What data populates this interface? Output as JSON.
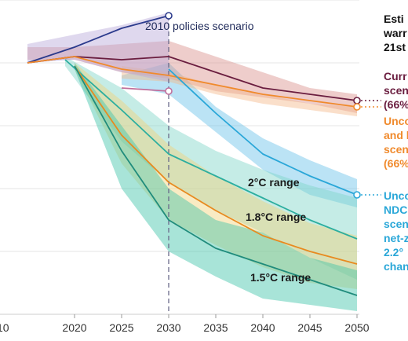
{
  "chart_data": {
    "type": "line",
    "x_ticks": [
      2020,
      2025,
      2030,
      2035,
      2040,
      2045,
      2050
    ],
    "xlim": [
      2015,
      2050
    ],
    "ylim": [
      0,
      100
    ],
    "y_axis_labels": "not visible (cropped)",
    "vertical_reference_line": 2030,
    "bands": [
      {
        "name": "blue band",
        "color": "#69c2e9",
        "upper": [
          [
            2025,
            76
          ],
          [
            2030,
            80
          ],
          [
            2035,
            66
          ],
          [
            2040,
            56
          ],
          [
            2045,
            49
          ],
          [
            2050,
            43
          ]
        ],
        "lower": [
          [
            2025,
            73
          ],
          [
            2030,
            70
          ],
          [
            2035,
            58
          ],
          [
            2040,
            46
          ],
          [
            2045,
            38
          ],
          [
            2050,
            34
          ]
        ]
      },
      {
        "name": "2°C range",
        "color": "#7fd4c8",
        "upper": [
          [
            2019,
            82
          ],
          [
            2025,
            72
          ],
          [
            2030,
            60
          ],
          [
            2035,
            52
          ],
          [
            2040,
            46
          ],
          [
            2045,
            41
          ],
          [
            2050,
            37
          ]
        ],
        "lower": [
          [
            2019,
            79
          ],
          [
            2025,
            55
          ],
          [
            2030,
            42
          ],
          [
            2035,
            33
          ],
          [
            2040,
            26
          ],
          [
            2045,
            18
          ],
          [
            2050,
            11
          ]
        ]
      },
      {
        "name": "1.8°C range",
        "color": "#f2d37a",
        "upper": [
          [
            2020,
            80
          ],
          [
            2025,
            68
          ],
          [
            2030,
            54
          ],
          [
            2035,
            44
          ],
          [
            2040,
            36
          ],
          [
            2045,
            29
          ],
          [
            2050,
            25
          ]
        ],
        "lower": [
          [
            2020,
            78
          ],
          [
            2025,
            48
          ],
          [
            2030,
            30
          ],
          [
            2035,
            22
          ],
          [
            2040,
            15
          ],
          [
            2045,
            10
          ],
          [
            2050,
            8
          ]
        ]
      },
      {
        "name": "1.5°C range",
        "color": "#3fc3a8",
        "upper": [
          [
            2020,
            80
          ],
          [
            2025,
            60
          ],
          [
            2030,
            40
          ],
          [
            2035,
            30
          ],
          [
            2040,
            26
          ],
          [
            2045,
            18
          ],
          [
            2050,
            14
          ]
        ],
        "lower": [
          [
            2020,
            78
          ],
          [
            2025,
            40
          ],
          [
            2030,
            20
          ],
          [
            2035,
            12
          ],
          [
            2040,
            5
          ],
          [
            2045,
            3
          ],
          [
            2050,
            1
          ]
        ]
      },
      {
        "name": "Current policies band",
        "color": "#d9908c",
        "upper": [
          [
            2015,
            85
          ],
          [
            2020,
            85
          ],
          [
            2025,
            86
          ],
          [
            2030,
            87
          ],
          [
            2035,
            82
          ],
          [
            2040,
            77
          ],
          [
            2045,
            72
          ],
          [
            2050,
            70
          ]
        ],
        "lower": [
          [
            2015,
            81
          ],
          [
            2020,
            81
          ],
          [
            2025,
            77
          ],
          [
            2030,
            75
          ],
          [
            2035,
            71
          ],
          [
            2040,
            69
          ],
          [
            2045,
            67
          ],
          [
            2050,
            64
          ]
        ]
      },
      {
        "name": "Unconditional pledges band",
        "color": "#f5b98a",
        "upper": [
          [
            2025,
            79
          ],
          [
            2030,
            77
          ],
          [
            2035,
            73
          ],
          [
            2040,
            70
          ],
          [
            2045,
            67
          ],
          [
            2050,
            66
          ]
        ],
        "lower": [
          [
            2025,
            75
          ],
          [
            2030,
            74
          ],
          [
            2035,
            70
          ],
          [
            2040,
            67
          ],
          [
            2045,
            65
          ],
          [
            2050,
            63
          ]
        ]
      },
      {
        "name": "2010 policies band",
        "color": "#b9a9d9",
        "upper": [
          [
            2015,
            86
          ],
          [
            2020,
            89
          ],
          [
            2025,
            92
          ],
          [
            2030,
            96
          ]
        ],
        "lower": [
          [
            2015,
            80
          ],
          [
            2020,
            81
          ],
          [
            2025,
            77
          ],
          [
            2030,
            74
          ]
        ]
      }
    ],
    "series": [
      {
        "name": "2010 policies scenario",
        "color": "#2b3a8c",
        "points": [
          [
            2015,
            80
          ],
          [
            2020,
            85
          ],
          [
            2025,
            91
          ],
          [
            2030,
            95
          ]
        ]
      },
      {
        "name": "Current policies scenario",
        "color": "#6a1d3f",
        "points": [
          [
            2015,
            80
          ],
          [
            2020,
            82
          ],
          [
            2025,
            81
          ],
          [
            2030,
            82
          ],
          [
            2035,
            77
          ],
          [
            2040,
            72
          ],
          [
            2045,
            70
          ],
          [
            2050,
            68
          ]
        ]
      },
      {
        "name": "Unconditional pledges scenario",
        "color": "#f08a2c",
        "points": [
          [
            2015,
            80
          ],
          [
            2020,
            82
          ],
          [
            2025,
            78
          ],
          [
            2030,
            76
          ],
          [
            2035,
            73
          ],
          [
            2040,
            70
          ],
          [
            2045,
            68
          ],
          [
            2050,
            66
          ]
        ]
      },
      {
        "name": "Unconditional NDCs scenario",
        "color": "#2aa7d8",
        "points": [
          [
            2030,
            78
          ],
          [
            2035,
            64
          ],
          [
            2040,
            51
          ],
          [
            2045,
            44
          ],
          [
            2050,
            38
          ]
        ]
      },
      {
        "name": "2°C pathway",
        "color": "#2cae9f",
        "points": [
          [
            2019,
            81
          ],
          [
            2025,
            65
          ],
          [
            2030,
            51
          ],
          [
            2035,
            44
          ],
          [
            2040,
            37
          ],
          [
            2045,
            30
          ],
          [
            2050,
            24
          ]
        ]
      },
      {
        "name": "1.8°C pathway",
        "color": "#e88a1f",
        "points": [
          [
            2020,
            79
          ],
          [
            2025,
            57
          ],
          [
            2030,
            42
          ],
          [
            2035,
            33
          ],
          [
            2040,
            25
          ],
          [
            2045,
            20
          ],
          [
            2050,
            16
          ]
        ]
      },
      {
        "name": "1.5°C pathway",
        "color": "#208c7c",
        "points": [
          [
            2020,
            79
          ],
          [
            2025,
            52
          ],
          [
            2030,
            30
          ],
          [
            2035,
            21
          ],
          [
            2040,
            16
          ],
          [
            2045,
            11
          ],
          [
            2050,
            6
          ]
        ]
      },
      {
        "name": "2030 marker",
        "color": "#c06f9c",
        "points": [
          [
            2025,
            72
          ],
          [
            2030,
            71
          ]
        ]
      }
    ],
    "range_labels": [
      "2°C range",
      "1.8°C range",
      "1.5°C range"
    ],
    "top_annotation": "2010 policies scenario",
    "right_heading": [
      "Esti",
      "warr",
      "21st"
    ],
    "right_annotations": [
      {
        "lines": [
          "Curr",
          "scen",
          "(66%"
        ],
        "color": "#6a1d3f"
      },
      {
        "lines": [
          "Unco",
          "and l",
          "scen",
          "(66%"
        ],
        "color": "#f08a2c"
      },
      {
        "lines": [
          "Unco",
          "NDC",
          "scen",
          "net-z",
          "2.2°",
          "chan"
        ],
        "color": "#2aa7d8"
      }
    ]
  }
}
